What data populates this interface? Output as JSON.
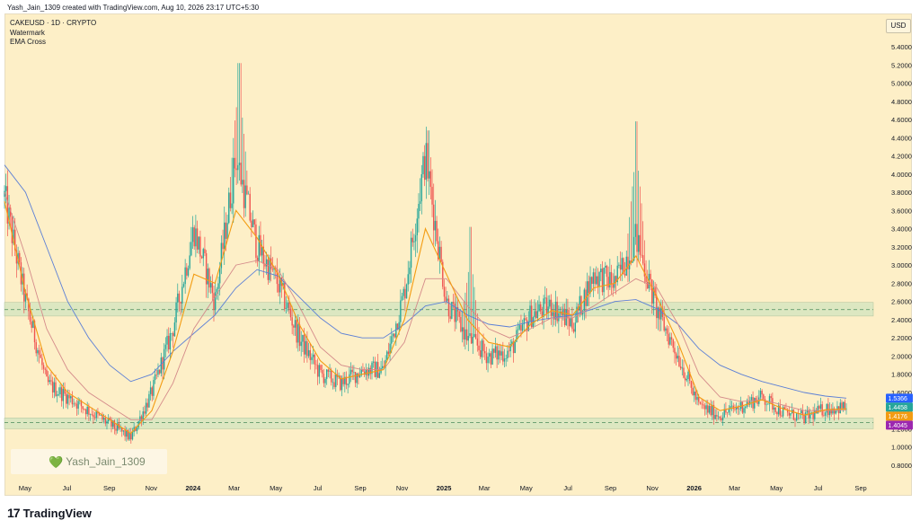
{
  "header": {
    "attribution": "Yash_Jain_1309 created with TradingView.com, Aug 10, 2026 23:17 UTC+5:30"
  },
  "legend": {
    "symbol": "CAKEUSD · 1D · CRYPTO",
    "watermark": "Watermark",
    "indicator": "EMA Cross"
  },
  "currency_button": "USD",
  "watermark_text": "Yash_Jain_1309",
  "branding": {
    "mark": "17",
    "name": "TradingView"
  },
  "colors": {
    "background": "#fdefc7",
    "up": "#26a69a",
    "down": "#ef5350",
    "ema_fast": "#f39c12",
    "ema_slow": "#d48a8a",
    "ema_long": "#5b7fd6",
    "zone": "#d6e5c0",
    "zone_line": "#4a8a5a"
  },
  "chart_data": {
    "type": "candlestick",
    "yaxis_ticks": [
      "5.4000",
      "5.2000",
      "5.0000",
      "4.8000",
      "4.6000",
      "4.4000",
      "4.2000",
      "4.0000",
      "3.8000",
      "3.6000",
      "3.4000",
      "3.2000",
      "3.0000",
      "2.8000",
      "2.6000",
      "2.4000",
      "2.2000",
      "2.0000",
      "1.8000",
      "1.6000",
      "1.4000",
      "1.2000",
      "1.0000",
      "0.8000"
    ],
    "ylim": [
      0.72,
      5.65
    ],
    "yaxis_scale": "linear",
    "xaxis_ticks": [
      "May",
      "Jul",
      "Sep",
      "Nov",
      "2024",
      "Mar",
      "May",
      "Jul",
      "Sep",
      "Nov",
      "2025",
      "Mar",
      "May",
      "Jul",
      "Sep",
      "Nov",
      "2026",
      "Mar",
      "May",
      "Jul",
      "Sep"
    ],
    "xaxis_tick_dates": [
      "2023-05",
      "2023-07",
      "2023-09",
      "2023-11",
      "2024-01",
      "2024-03",
      "2024-05",
      "2024-07",
      "2024-09",
      "2024-11",
      "2025-01",
      "2025-03",
      "2025-05",
      "2025-07",
      "2025-09",
      "2025-11",
      "2026-01",
      "2026-03",
      "2026-05",
      "2026-07",
      "2026-09"
    ],
    "price_trend_dates": [
      "2023-04",
      "2023-05",
      "2023-06",
      "2023-07",
      "2023-08",
      "2023-09",
      "2023-10",
      "2023-11",
      "2023-12",
      "2024-01",
      "2024-02",
      "2024-03",
      "2024-04",
      "2024-05",
      "2024-06",
      "2024-07",
      "2024-08",
      "2024-09",
      "2024-10",
      "2024-11",
      "2024-12",
      "2025-01",
      "2025-02",
      "2025-03",
      "2025-04",
      "2025-05",
      "2025-06",
      "2025-07",
      "2025-08",
      "2025-09",
      "2025-10",
      "2025-11",
      "2025-12",
      "2026-01",
      "2026-02",
      "2026-03",
      "2026-04",
      "2026-05",
      "2026-06",
      "2026-07",
      "2026-08"
    ],
    "price_trend": [
      3.75,
      2.6,
      1.7,
      1.55,
      1.4,
      1.25,
      1.1,
      1.6,
      2.3,
      3.4,
      2.6,
      4.2,
      3.2,
      2.8,
      2.2,
      1.8,
      1.7,
      1.85,
      1.85,
      2.7,
      4.2,
      2.6,
      2.2,
      2.0,
      2.05,
      2.45,
      2.55,
      2.35,
      2.9,
      2.8,
      3.3,
      2.5,
      2.0,
      1.45,
      1.35,
      1.45,
      1.55,
      1.38,
      1.32,
      1.42,
      1.44
    ],
    "spikes": [
      {
        "date": "2024-03",
        "high": 5.22
      },
      {
        "date": "2024-12",
        "high": 4.48
      },
      {
        "date": "2025-10",
        "high": 4.58
      },
      {
        "date": "2025-02",
        "high": 3.42
      }
    ],
    "ema_fast": [
      3.7,
      2.7,
      1.9,
      1.6,
      1.45,
      1.3,
      1.15,
      1.4,
      2.05,
      2.9,
      2.8,
      3.6,
      3.3,
      2.9,
      2.35,
      1.95,
      1.75,
      1.8,
      1.85,
      2.4,
      3.4,
      2.9,
      2.4,
      2.15,
      2.1,
      2.35,
      2.5,
      2.45,
      2.75,
      2.8,
      3.1,
      2.65,
      2.15,
      1.55,
      1.4,
      1.45,
      1.52,
      1.42,
      1.35,
      1.41,
      1.42
    ],
    "ema_slow": [
      3.8,
      3.1,
      2.3,
      1.85,
      1.6,
      1.45,
      1.3,
      1.3,
      1.7,
      2.3,
      2.65,
      3.0,
      3.05,
      2.95,
      2.55,
      2.1,
      1.9,
      1.85,
      1.85,
      2.15,
      2.85,
      2.85,
      2.55,
      2.3,
      2.2,
      2.3,
      2.42,
      2.42,
      2.55,
      2.7,
      2.85,
      2.75,
      2.35,
      1.8,
      1.55,
      1.5,
      1.52,
      1.46,
      1.4,
      1.4,
      1.405
    ],
    "ema_long": [
      4.1,
      3.8,
      3.2,
      2.6,
      2.2,
      1.9,
      1.72,
      1.8,
      2.05,
      2.25,
      2.45,
      2.75,
      2.95,
      2.88,
      2.65,
      2.42,
      2.25,
      2.2,
      2.2,
      2.35,
      2.55,
      2.6,
      2.45,
      2.35,
      2.32,
      2.38,
      2.42,
      2.45,
      2.52,
      2.6,
      2.62,
      2.52,
      2.35,
      2.08,
      1.9,
      1.8,
      1.72,
      1.66,
      1.6,
      1.56,
      1.537
    ],
    "support_zone": {
      "low": 2.44,
      "high": 2.59,
      "dashed_at": 2.51
    },
    "lower_zone": {
      "low": 1.2,
      "high": 1.32,
      "dashed_at": 1.27
    },
    "price_labels": [
      {
        "value": "1.5366",
        "price": 1.5366,
        "color": "#2962ff"
      },
      {
        "value": "1.4458",
        "price": 1.4458,
        "color": "#26a69a"
      },
      {
        "value": "1.4176",
        "price": 1.4176,
        "color": "#f39c12"
      },
      {
        "value": "1.4045",
        "price": 1.4045,
        "color": "#9c27b0"
      }
    ]
  }
}
